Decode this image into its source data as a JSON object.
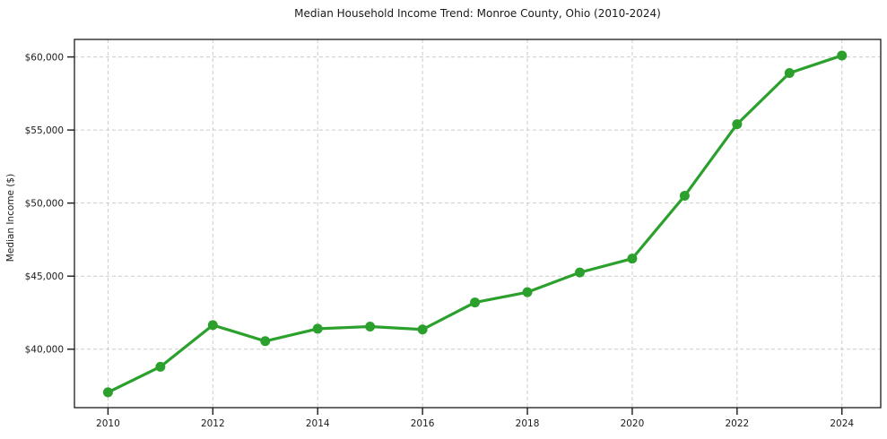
{
  "chart_data": {
    "type": "line",
    "title": "Median Household Income Trend: Monroe County, Ohio (2010-2024)",
    "xlabel": "",
    "ylabel": "Median Income ($)",
    "series": [
      {
        "name": "Median Household Income",
        "x": [
          2010,
          2011,
          2012,
          2013,
          2014,
          2015,
          2016,
          2017,
          2018,
          2019,
          2020,
          2021,
          2022,
          2023,
          2024
        ],
        "values": [
          37050,
          38800,
          41650,
          40550,
          41400,
          41550,
          41350,
          43200,
          43900,
          45250,
          46200,
          50500,
          55400,
          58900,
          60100
        ]
      }
    ],
    "x_tick_values": [
      2010,
      2012,
      2014,
      2016,
      2018,
      2020,
      2022,
      2024
    ],
    "x_tick_labels": [
      "2010",
      "2012",
      "2014",
      "2016",
      "2018",
      "2020",
      "2022",
      "2024"
    ],
    "y_tick_values": [
      40000,
      45000,
      50000,
      55000,
      60000
    ],
    "y_tick_labels": [
      "$40,000",
      "$45,000",
      "$50,000",
      "$55,000",
      "$60,000"
    ],
    "xlim": [
      2009.36,
      2024.74
    ],
    "ylim": [
      36000,
      61200
    ],
    "grid": true,
    "grid_style": "dashed",
    "legend_position": "none",
    "marker": "circle",
    "colors": {
      "line": "#2ca02c",
      "marker": "#2ca02c",
      "grid": "#cccccc",
      "axis": "#1a1a1a",
      "text": "#1a1a1a",
      "background": "#ffffff"
    }
  }
}
